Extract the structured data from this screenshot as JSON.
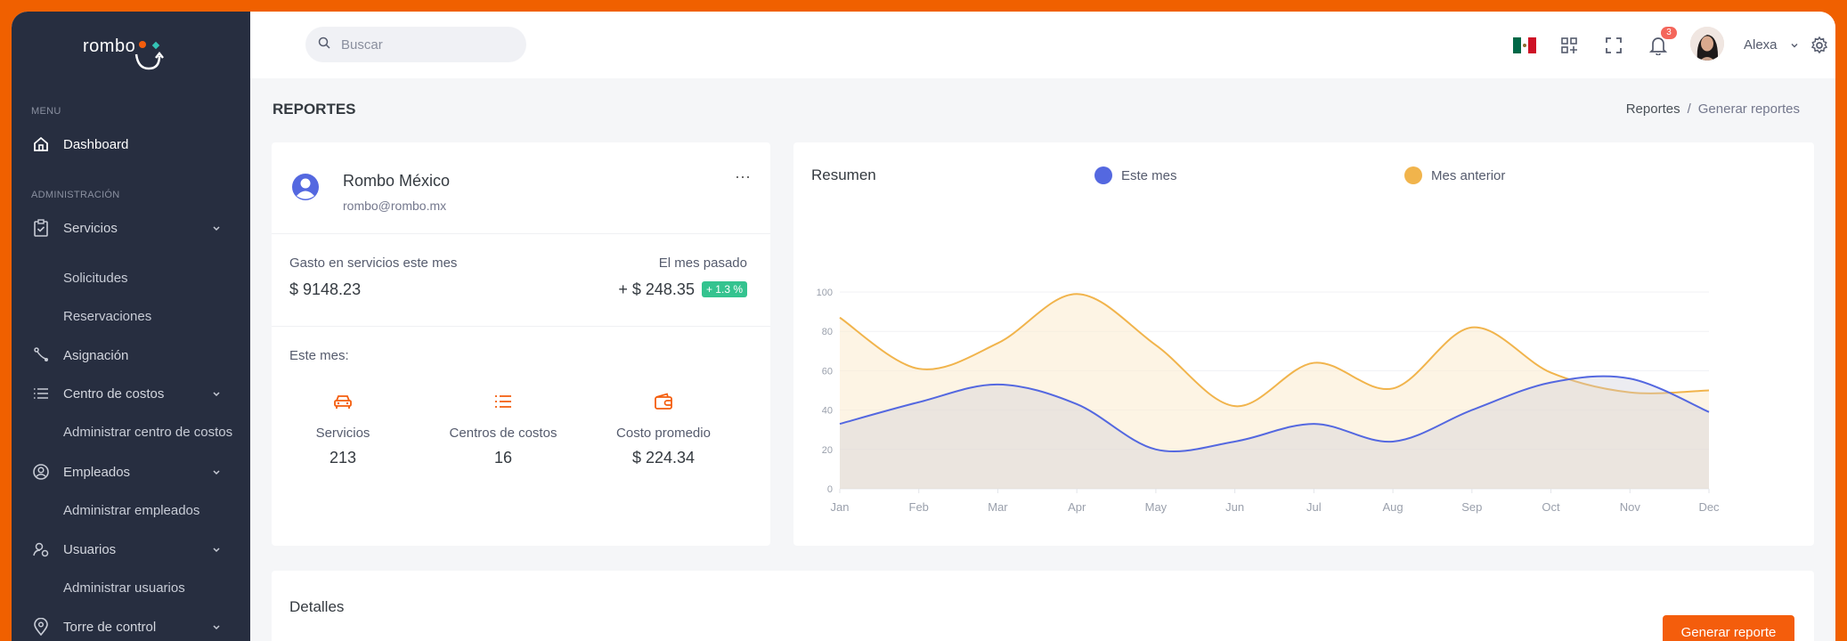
{
  "brand": {
    "logo_text": "rombo"
  },
  "sidebar": {
    "menu_title": "MENU",
    "admin_title": "ADMINISTRACIÓN",
    "dashboard": "Dashboard",
    "servicios": "Servicios",
    "solicitudes": "Solicitudes",
    "reservaciones": "Reservaciones",
    "asignacion": "Asignación",
    "centro_costos": "Centro de costos",
    "admin_centro_costos": "Administrar centro de costos",
    "empleados": "Empleados",
    "admin_empleados": "Administrar empleados",
    "usuarios": "Usuarios",
    "admin_usuarios": "Administrar usuarios",
    "torre_control": "Torre de control"
  },
  "topbar": {
    "search_placeholder": "Buscar",
    "notifications_count": "3",
    "user_name": "Alexa"
  },
  "page": {
    "title": "REPORTES",
    "breadcrumb_parent": "Reportes",
    "breadcrumb_sep": "/",
    "breadcrumb_current": "Generar reportes"
  },
  "account": {
    "name": "Rombo México",
    "email": "rombo@rombo.mx",
    "menu": "···",
    "spend_label": "Gasto en servicios este mes",
    "spend_value": "$ 9148.23",
    "last_month_label": "El mes pasado",
    "last_month_value": "+ $ 248.35",
    "last_month_pct": "+ 1.3 %",
    "this_month_label": "Este mes:",
    "stats": [
      {
        "label": "Servicios",
        "value": "213"
      },
      {
        "label": "Centros de costos",
        "value": "16"
      },
      {
        "label": "Costo promedio",
        "value": "$ 224.34"
      }
    ]
  },
  "summary": {
    "title": "Resumen",
    "accent_colors": {
      "este_mes": "#5468e0",
      "mes_anterior": "#f1b44c"
    }
  },
  "chart_data": {
    "type": "area",
    "categories": [
      "Jan",
      "Feb",
      "Mar",
      "Apr",
      "May",
      "Jun",
      "Jul",
      "Aug",
      "Sep",
      "Oct",
      "Nov",
      "Dec"
    ],
    "series": [
      {
        "name": "Este mes",
        "values": [
          33,
          44,
          53,
          43,
          20,
          24,
          33,
          24,
          40,
          54,
          56,
          39
        ]
      },
      {
        "name": "Mes anterior",
        "values": [
          87,
          61,
          74,
          99,
          73,
          42,
          64,
          51,
          82,
          59,
          49,
          50
        ]
      }
    ],
    "yticks": [
      0,
      20,
      40,
      60,
      80,
      100
    ],
    "ylim": [
      0,
      100
    ],
    "legend_position": "top",
    "grid": true
  },
  "details": {
    "title": "Detalles",
    "button": "Generar reporte"
  }
}
